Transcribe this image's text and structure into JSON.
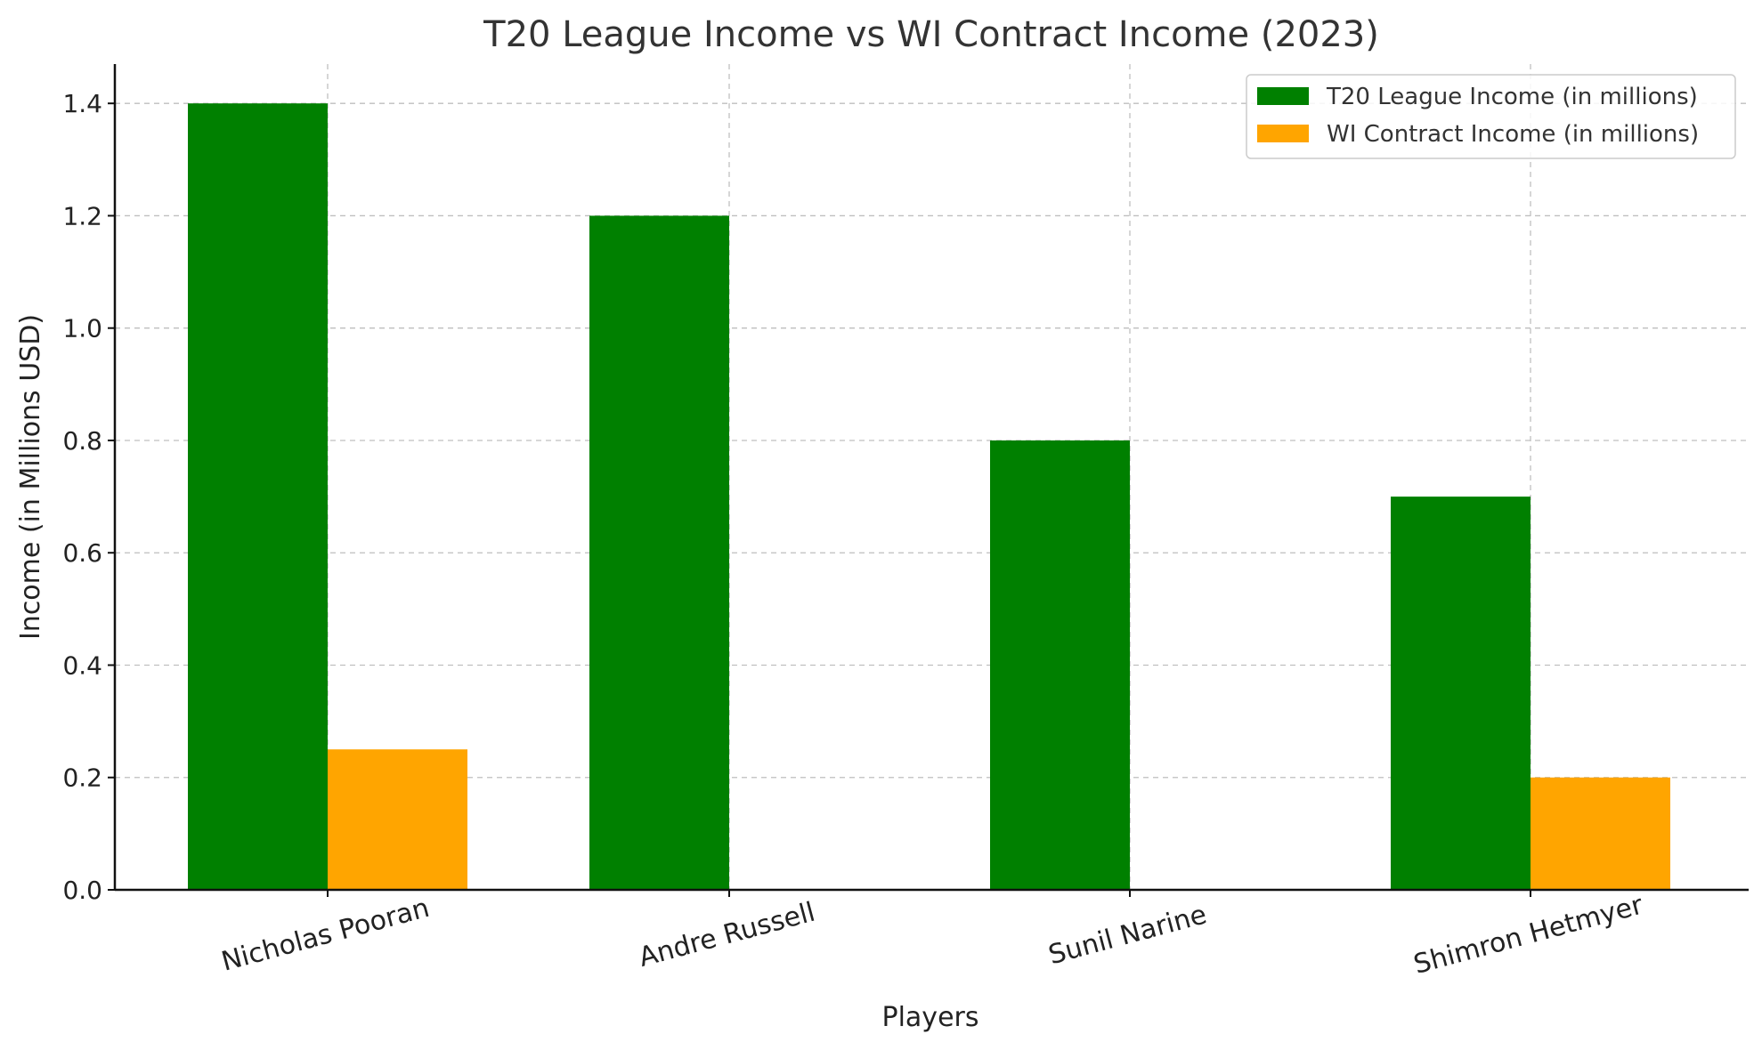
{
  "chart_data": {
    "type": "bar",
    "title": "T20 League Income vs WI Contract Income (2023)",
    "xlabel": "Players",
    "ylabel": "Income (in Millions USD)",
    "categories": [
      "Nicholas Pooran",
      "Andre Russell",
      "Sunil Narine",
      "Shimron Hetmyer"
    ],
    "series": [
      {
        "name": "T20 League Income (in millions)",
        "color": "#008000",
        "values": [
          1.4,
          1.2,
          0.8,
          0.7
        ]
      },
      {
        "name": "WI Contract Income (in millions)",
        "color": "#FFA500",
        "values": [
          0.25,
          0.0,
          0.0,
          0.2
        ]
      }
    ],
    "ylim": [
      0,
      1.47
    ],
    "yticks": [
      0.0,
      0.2,
      0.4,
      0.6,
      0.8,
      1.0,
      1.2,
      1.4
    ],
    "ytick_labels": [
      "0.0",
      "0.2",
      "0.4",
      "0.6",
      "0.8",
      "1.0",
      "1.2",
      "1.4"
    ],
    "grid": true,
    "legend_position": "top-right"
  }
}
